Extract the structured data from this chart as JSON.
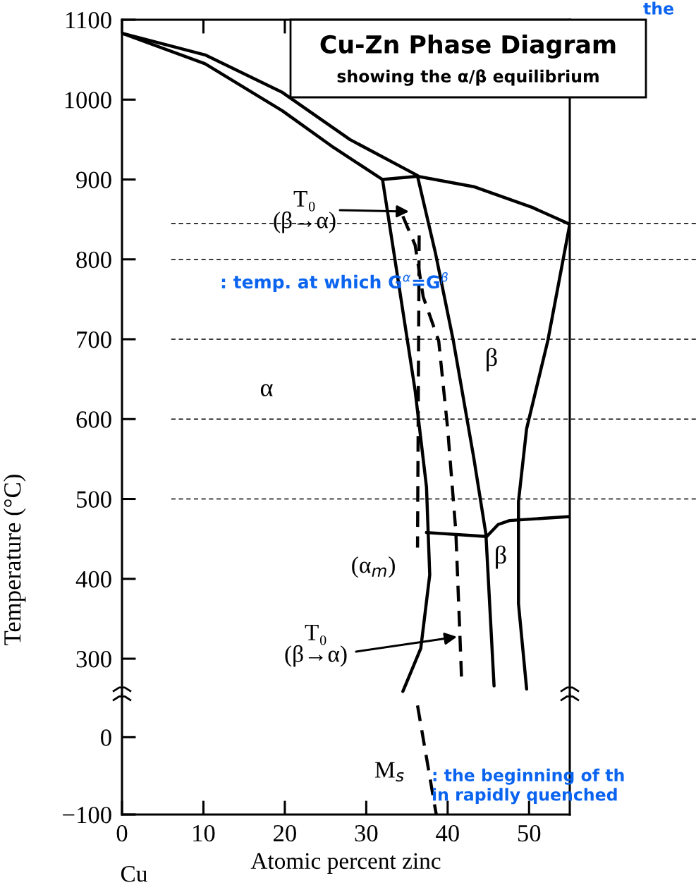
{
  "chart_data": [
    {
      "type": "line",
      "title": "Cu-Zn Phase Diagram",
      "subtitle": "showing the α/β equilibrium",
      "ylabel": "Temperature (°C)",
      "xlim": [
        0,
        55
      ],
      "xticks": [
        0,
        10,
        20,
        30,
        40,
        50
      ],
      "ylim": [
        255,
        1100
      ],
      "yticks": [
        300,
        400,
        500,
        600,
        700,
        800,
        900,
        1000,
        1100
      ],
      "tick_labels": "y",
      "series": [
        {
          "color": "#000000",
          "line_style": "solid",
          "x": [
            0,
            10.2,
            19.7,
            28,
            36.3
          ],
          "values": [
            1083,
            1056,
            1009,
            950,
            905
          ]
        },
        {
          "color": "#000000",
          "line_style": "solid",
          "x": [
            0,
            10.2,
            19.7,
            26,
            32.0
          ],
          "values": [
            1083,
            1045,
            986,
            940,
            900
          ]
        },
        {
          "color": "#000000",
          "line_style": "solid",
          "x": [
            32.0,
            36.3,
            43.2,
            50.4,
            55.0
          ],
          "values": [
            900,
            904,
            891,
            865,
            844
          ]
        },
        {
          "color": "#000000",
          "line_style": "solid",
          "x": [
            32.0,
            33.4,
            36.0,
            37.4,
            37.8,
            36.7,
            34.5
          ],
          "values": [
            900,
            808,
            636,
            515,
            405,
            313,
            259
          ]
        },
        {
          "color": "#000000",
          "line_style": "solid",
          "x": [
            36.3,
            38.5,
            40.7,
            43.2,
            44.7,
            45.7
          ],
          "values": [
            904,
            808,
            698,
            552,
            456,
            266
          ]
        },
        {
          "color": "#000000",
          "line_style": "solid",
          "x": [
            55.0,
            52.3,
            49.7,
            48.7,
            48.7,
            49.7
          ],
          "values": [
            844,
            698,
            588,
            497,
            369,
            262
          ]
        },
        {
          "color": "#000000",
          "line_style": "solid",
          "x": [
            37.4,
            44.8,
            46.2,
            47.6,
            55.0
          ],
          "values": [
            458,
            453,
            468,
            473,
            478
          ]
        },
        {
          "color": "#000000",
          "line_style": "dashed",
          "x": [
            34.5,
            36.0,
            37.0,
            38.9,
            40.0,
            41.0,
            41.5,
            41.7
          ],
          "values": [
            854,
            818,
            753,
            698,
            588,
            460,
            331,
            277
          ]
        },
        {
          "color": "#000000",
          "line_style": "dashed",
          "x": [
            36.5,
            36.3
          ],
          "values": [
            830,
            439
          ]
        }
      ],
      "ref_lines": [
        {
          "axis": "y",
          "value": 845,
          "color": "#000000",
          "line_style": "dashed"
        },
        {
          "axis": "y",
          "value": 800,
          "color": "#000000",
          "line_style": "dashed"
        },
        {
          "axis": "y",
          "value": 700,
          "color": "#000000",
          "line_style": "dashed"
        },
        {
          "axis": "y",
          "value": 600,
          "color": "#000000",
          "line_style": "dashed"
        },
        {
          "axis": "y",
          "value": 500,
          "color": "#000000",
          "line_style": "dashed"
        }
      ],
      "annotations": [
        "T₀\n(β→α)",
        "T₀\n(β→α)",
        "α",
        "β",
        "β",
        {
          "text": "(α$_{m}$)",
          "x": 36.3,
          "y": 439
        },
        ": temp. at which G$^{α}$=G$^{β}$",
        "the"
      ]
    },
    {
      "type": "line",
      "xlabel": "Atomic percent zinc",
      "xlim": [
        0,
        55
      ],
      "xticks": [
        0,
        10,
        20,
        30,
        40,
        50
      ],
      "ylim": [
        -100,
        55
      ],
      "yticks": [
        0,
        {
          "value": -100,
          "label": "−100"
        }
      ],
      "series": [
        {
          "color": "#000000",
          "line_style": "dashed",
          "x": [
            36.3,
            38.6
          ],
          "values": [
            41,
            -100
          ]
        }
      ],
      "annotations": [
        {
          "text": "M$_{s}$",
          "x": 37.7,
          "y": -45
        },
        ": the beginning of th\nin rapidly quenched",
        "Cu"
      ]
    }
  ]
}
